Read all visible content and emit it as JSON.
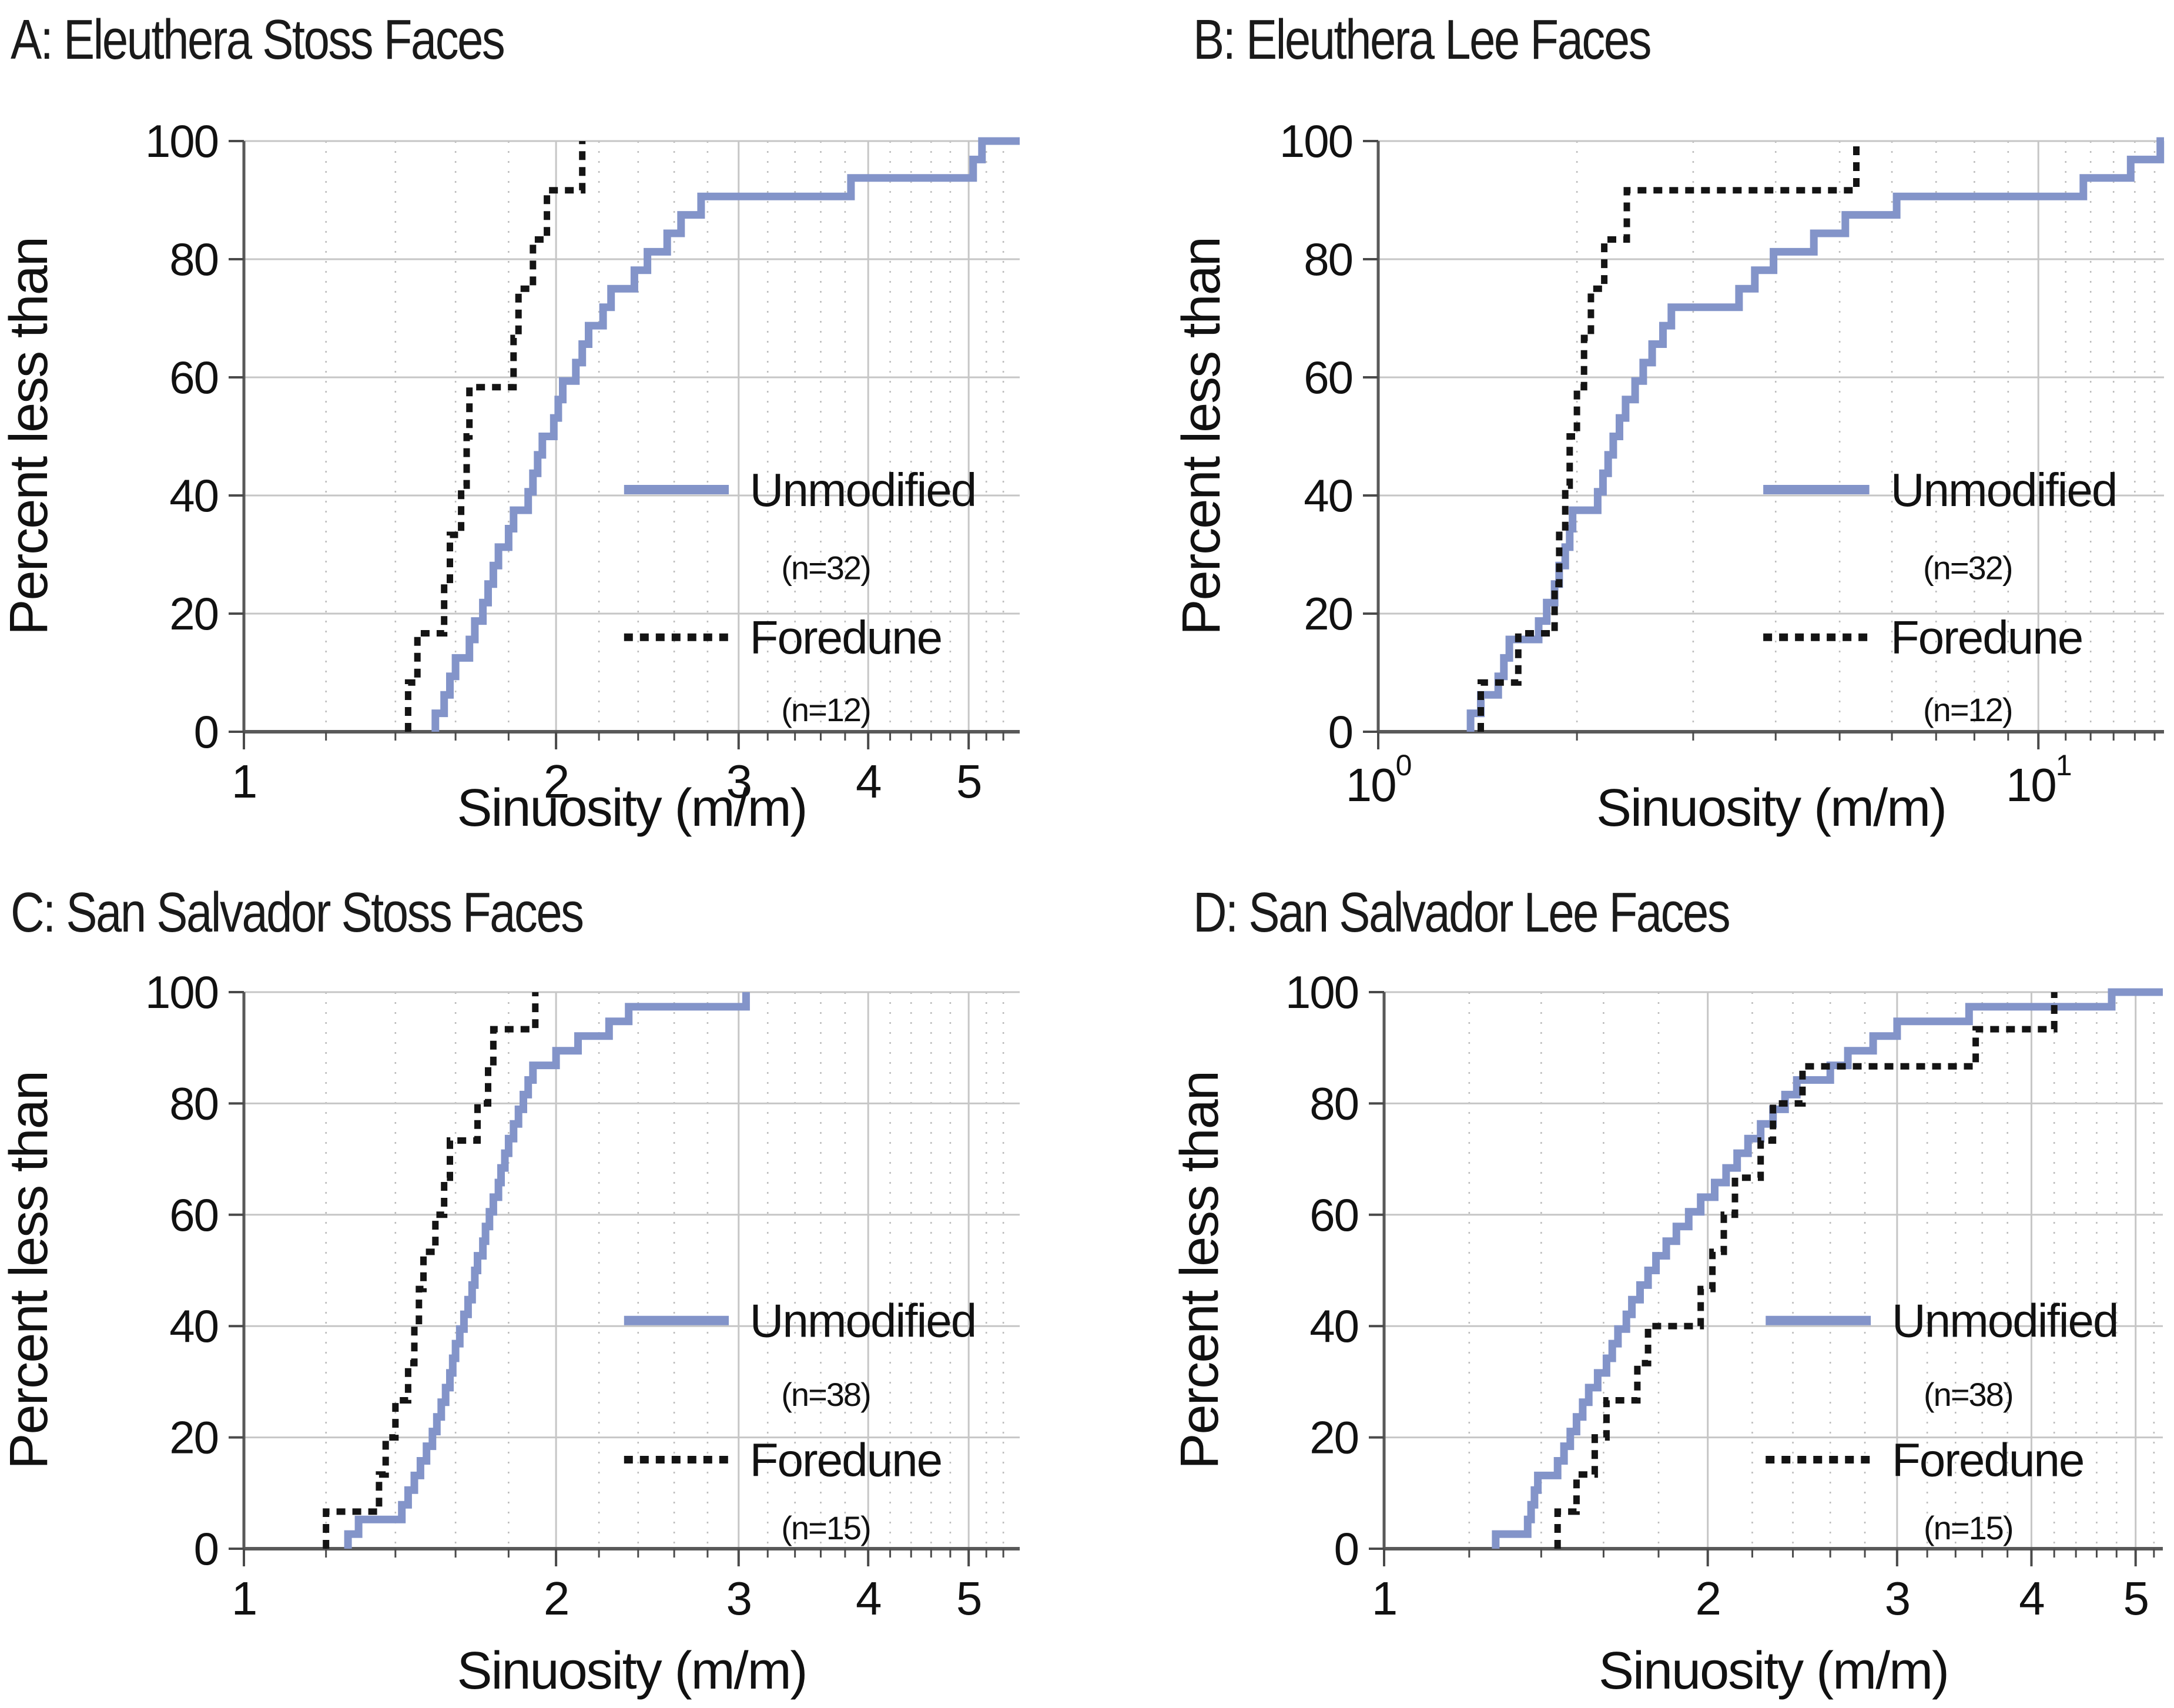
{
  "figure": {
    "xlabel": "Sinuosity (m/m)",
    "ylabel": "Percent less than",
    "legend": {
      "series1_label": "Unmodified",
      "series2_label": "Foredune",
      "rows_percent": [
        41,
        28,
        16,
        4
      ]
    },
    "colors": {
      "unmodified": "#8394c9",
      "foredune": "#141414",
      "grid_major": "#c6c6c6",
      "grid_minor": "#bdbdbd",
      "spine": "#595959",
      "tick": "#4a4a4a",
      "text": "#111111",
      "muted_label": "#8a8a8a",
      "background": "#ffffff"
    }
  },
  "chart_data": [
    {
      "panel": "A",
      "title": "A: Eleuthera Stoss Faces",
      "type": "step-cdf",
      "xscale": "log",
      "xlim": [
        1,
        5.6
      ],
      "ylim": [
        0,
        100
      ],
      "grid": true,
      "yticks": [
        0,
        20,
        40,
        60,
        80,
        100
      ],
      "xticks": [
        {
          "v": 1,
          "label": "1"
        },
        {
          "v": 2,
          "label": "2"
        },
        {
          "v": 3,
          "label": "3"
        },
        {
          "v": 4,
          "label": "4"
        },
        {
          "v": 5,
          "label": "5"
        }
      ],
      "xgrid_minor": [
        1.2,
        1.4,
        1.6,
        1.8,
        2.2,
        2.4,
        2.6,
        2.8,
        3.2,
        3.4,
        3.6,
        3.8,
        4.2,
        4.4,
        4.6,
        4.8,
        5.2,
        5.4
      ],
      "xgrid_major": [
        2,
        3,
        4,
        5
      ],
      "series": [
        {
          "name": "Unmodified",
          "n": 32,
          "n_label": "(n=32)",
          "style": "solid",
          "extend_to_xmax": true,
          "values": [
            1.53,
            1.56,
            1.58,
            1.6,
            1.65,
            1.67,
            1.7,
            1.72,
            1.74,
            1.76,
            1.8,
            1.82,
            1.88,
            1.9,
            1.92,
            1.94,
            1.99,
            2.01,
            2.03,
            2.09,
            2.12,
            2.15,
            2.22,
            2.26,
            2.38,
            2.45,
            2.56,
            2.64,
            2.76,
            3.85,
            5.05,
            5.15
          ]
        },
        {
          "name": "Foredune",
          "n": 12,
          "n_label": "(n=12)",
          "style": "dotted",
          "extend_to_xmax": false,
          "values": [
            1.44,
            1.47,
            1.56,
            1.58,
            1.62,
            1.64,
            1.65,
            1.82,
            1.84,
            1.9,
            1.96,
            2.12
          ]
        }
      ]
    },
    {
      "panel": "B",
      "title": "B: Eleuthera Lee Faces",
      "type": "step-cdf",
      "xscale": "log",
      "xlim": [
        1,
        15.5
      ],
      "ylim": [
        0,
        100
      ],
      "grid": true,
      "yticks": [
        0,
        20,
        40,
        60,
        80,
        100
      ],
      "xticks": [
        {
          "v": 1,
          "base": "10",
          "exp": "0"
        },
        {
          "v": 10,
          "base": "10",
          "exp": "1"
        }
      ],
      "xgrid_minor": [
        2,
        3,
        4,
        5,
        6,
        7,
        8,
        9,
        11,
        12,
        13,
        14,
        15
      ],
      "xgrid_major": [
        10
      ],
      "series": [
        {
          "name": "Unmodified",
          "n": 32,
          "n_label": "(n=32)",
          "style": "solid",
          "extend_to_xmax": true,
          "values": [
            1.38,
            1.43,
            1.52,
            1.55,
            1.58,
            1.75,
            1.8,
            1.85,
            1.88,
            1.92,
            1.95,
            1.97,
            2.15,
            2.19,
            2.23,
            2.27,
            2.32,
            2.37,
            2.45,
            2.52,
            2.6,
            2.7,
            2.78,
            3.52,
            3.72,
            3.97,
            4.57,
            5.1,
            6.1,
            11.7,
            13.8,
            15.3
          ]
        },
        {
          "name": "Foredune",
          "n": 12,
          "n_label": "(n=12)",
          "style": "dotted",
          "extend_to_xmax": false,
          "values": [
            1.43,
            1.63,
            1.85,
            1.88,
            1.92,
            1.95,
            2.0,
            2.05,
            2.1,
            2.2,
            2.38,
            5.3
          ]
        }
      ]
    },
    {
      "panel": "C",
      "title": "C: San Salvador Stoss Faces",
      "type": "step-cdf",
      "xscale": "log",
      "xlim": [
        1,
        5.6
      ],
      "ylim": [
        0,
        100
      ],
      "grid": true,
      "yticks": [
        0,
        20,
        40,
        60,
        80,
        100
      ],
      "xticks": [
        {
          "v": 1,
          "label": "1"
        },
        {
          "v": 2,
          "label": "2"
        },
        {
          "v": 3,
          "label": "3"
        },
        {
          "v": 4,
          "label": "4"
        },
        {
          "v": 5,
          "label": "5",
          "color": "#8a8a8a"
        }
      ],
      "xgrid_minor": [
        1.2,
        1.4,
        1.6,
        1.8,
        2.2,
        2.4,
        2.6,
        2.8,
        3.2,
        3.4,
        3.6,
        3.8,
        4.2,
        4.4,
        4.6,
        4.8,
        5.2,
        5.4
      ],
      "xgrid_major": [
        2,
        3,
        4,
        5
      ],
      "series": [
        {
          "name": "Unmodified",
          "n": 38,
          "n_label": "(n=38)",
          "style": "solid",
          "extend_to_xmax": false,
          "values": [
            1.26,
            1.29,
            1.42,
            1.44,
            1.46,
            1.48,
            1.5,
            1.52,
            1.535,
            1.55,
            1.565,
            1.58,
            1.59,
            1.6,
            1.615,
            1.63,
            1.645,
            1.66,
            1.67,
            1.68,
            1.7,
            1.71,
            1.725,
            1.74,
            1.76,
            1.77,
            1.785,
            1.8,
            1.82,
            1.84,
            1.86,
            1.88,
            1.9,
            2.0,
            2.1,
            2.25,
            2.35,
            3.05
          ]
        },
        {
          "name": "Foredune",
          "n": 15,
          "n_label": "(n=15)",
          "style": "dotted",
          "extend_to_xmax": false,
          "values": [
            1.2,
            1.35,
            1.37,
            1.4,
            1.44,
            1.46,
            1.475,
            1.49,
            1.53,
            1.56,
            1.58,
            1.68,
            1.72,
            1.74,
            1.91
          ]
        }
      ]
    },
    {
      "panel": "D",
      "title": "D: San Salvador Lee Faces",
      "type": "step-cdf",
      "xscale": "log",
      "xlim": [
        1,
        5.3
      ],
      "ylim": [
        0,
        100
      ],
      "grid": true,
      "yticks": [
        0,
        20,
        40,
        60,
        80,
        100
      ],
      "xticks": [
        {
          "v": 1,
          "label": "1"
        },
        {
          "v": 2,
          "label": "2"
        },
        {
          "v": 3,
          "label": "3"
        },
        {
          "v": 4,
          "label": "4"
        },
        {
          "v": 5,
          "label": "5"
        }
      ],
      "xgrid_minor": [
        1.2,
        1.4,
        1.6,
        1.8,
        2.2,
        2.4,
        2.6,
        2.8,
        3.2,
        3.4,
        3.6,
        3.8,
        4.2,
        4.4,
        4.6,
        4.8,
        5.2
      ],
      "xgrid_major": [
        2,
        3,
        4,
        5
      ],
      "series": [
        {
          "name": "Unmodified",
          "n": 38,
          "n_label": "(n=38)",
          "style": "solid",
          "extend_to_xmax": true,
          "values": [
            1.27,
            1.36,
            1.37,
            1.38,
            1.39,
            1.45,
            1.47,
            1.49,
            1.51,
            1.53,
            1.55,
            1.58,
            1.61,
            1.63,
            1.65,
            1.68,
            1.7,
            1.73,
            1.76,
            1.79,
            1.83,
            1.87,
            1.92,
            1.97,
            2.03,
            2.08,
            2.13,
            2.18,
            2.24,
            2.3,
            2.36,
            2.42,
            2.6,
            2.7,
            2.85,
            3.0,
            3.5,
            4.75
          ]
        },
        {
          "name": "Foredune",
          "n": 15,
          "n_label": "(n=15)",
          "style": "dotted",
          "extend_to_xmax": false,
          "values": [
            1.45,
            1.51,
            1.57,
            1.61,
            1.72,
            1.76,
            1.97,
            2.02,
            2.07,
            2.12,
            2.24,
            2.3,
            2.45,
            3.55,
            4.2
          ]
        }
      ]
    }
  ],
  "layout_note": "four-panel empirical CDF figure"
}
